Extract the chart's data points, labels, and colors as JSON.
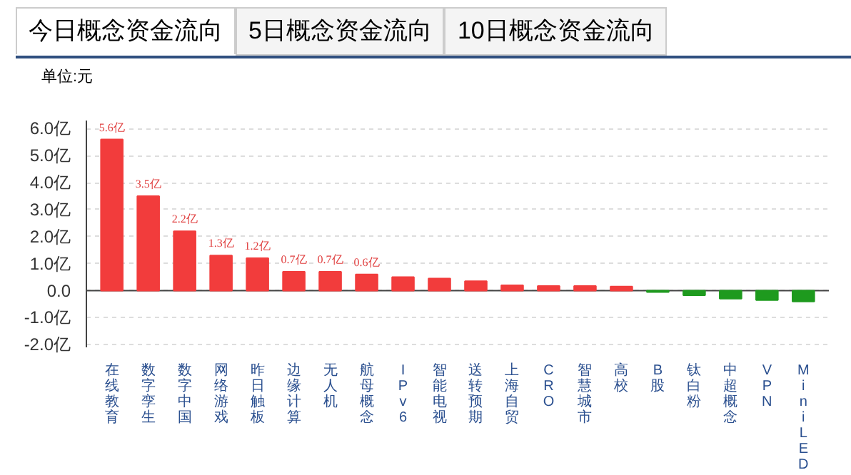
{
  "chart_data": {
    "type": "bar",
    "annotations": [
      "今日概念资金流向",
      "5日概念资金流向",
      "10日概念资金流向"
    ],
    "ylabel": "单位:元",
    "categories": [
      "在线教育",
      "数字孪生",
      "数字中国",
      "网络游戏",
      "昨日触板",
      "边缘计算",
      "无人机",
      "航母概念",
      "IPv6",
      "智能电视",
      "送转预期",
      "上海自贸",
      "CRO",
      "智慧城市",
      "高校",
      "B股",
      "钛白粉",
      "中超概念",
      "VPN",
      "MiniLED"
    ],
    "values": [
      5.6,
      3.5,
      2.2,
      1.3,
      1.2,
      0.7,
      0.7,
      0.6,
      0.5,
      0.45,
      0.35,
      0.2,
      0.17,
      0.17,
      0.15,
      -0.05,
      -0.17,
      -0.3,
      -0.35,
      -0.4
    ],
    "colors": [
      "#f23c3c",
      "#f23c3c",
      "#f23c3c",
      "#f23c3c",
      "#f23c3c",
      "#f23c3c",
      "#f23c3c",
      "#f23c3c",
      "#f23c3c",
      "#f23c3c",
      "#f23c3c",
      "#f23c3c",
      "#f23c3c",
      "#f23c3c",
      "#f23c3c",
      "#1e9a1e",
      "#1e9a1e",
      "#1e9a1e",
      "#1e9a1e",
      "#1e9a1e"
    ],
    "value_labels": [
      "5.6亿",
      "3.5亿",
      "2.2亿",
      "1.3亿",
      "1.2亿",
      "0.7亿",
      "0.7亿",
      "0.6亿",
      null,
      null,
      null,
      null,
      null,
      null,
      null,
      null,
      null,
      null,
      null,
      null
    ],
    "ylim": [
      -2.1,
      6.3
    ],
    "yticks": [
      {
        "value": -2,
        "label": "-2.0亿"
      },
      {
        "value": -1,
        "label": "-1.0亿"
      },
      {
        "value": 0,
        "label": "0.0"
      },
      {
        "value": 1,
        "label": "1.0亿"
      },
      {
        "value": 2,
        "label": "2.0亿"
      },
      {
        "value": 3,
        "label": "3.0亿"
      },
      {
        "value": 4,
        "label": "4.0亿"
      },
      {
        "value": 5,
        "label": "5.0亿"
      },
      {
        "value": 6,
        "label": "6.0亿"
      }
    ],
    "grid": "y"
  }
}
